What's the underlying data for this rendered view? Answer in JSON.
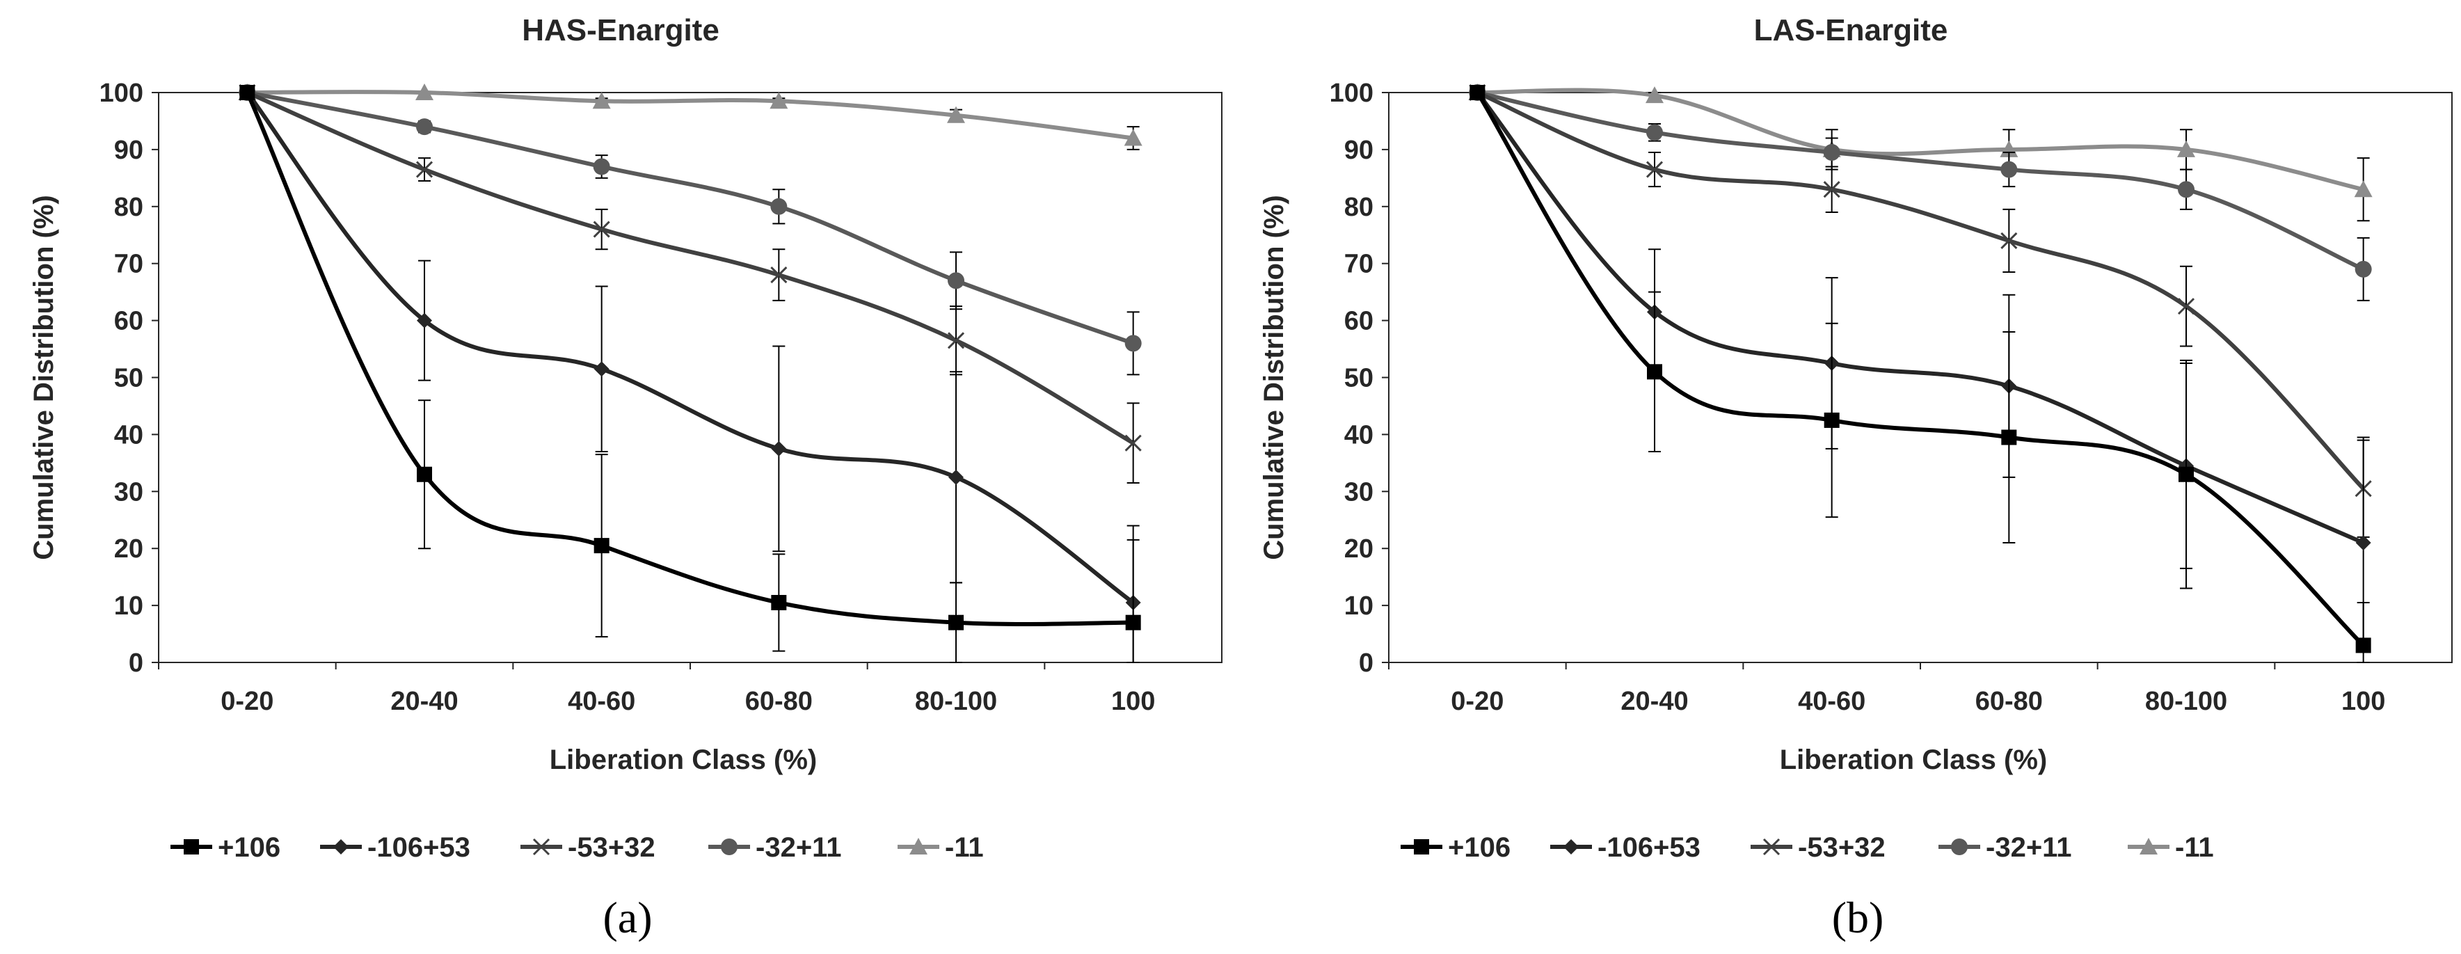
{
  "chart_data": [
    {
      "type": "line",
      "title": "HAS-Enargite",
      "xlabel": "Liberation Class (%)",
      "ylabel": "Cumulative Distribution (%)",
      "categories": [
        "0-20",
        "20-40",
        "40-60",
        "60-80",
        "80-100",
        "100"
      ],
      "ylim": [
        0,
        100
      ],
      "yticks": [
        "0",
        "10",
        "20",
        "30",
        "40",
        "50",
        "60",
        "70",
        "80",
        "90",
        "100"
      ],
      "panel_label": "(a)",
      "series": [
        {
          "name": "+106",
          "marker": "square",
          "color": "#000000",
          "values": [
            100,
            33,
            20.5,
            10.5,
            7,
            7
          ],
          "errors": [
            0,
            13,
            16,
            8.5,
            7,
            17
          ]
        },
        {
          "name": "-106+53",
          "marker": "diamond",
          "color": "#262626",
          "values": [
            100,
            60,
            51.5,
            37.5,
            32.5,
            10.5
          ],
          "errors": [
            0,
            10.5,
            14.5,
            18,
            18.5,
            11
          ]
        },
        {
          "name": "-53+32",
          "marker": "x",
          "color": "#404040",
          "values": [
            100,
            86.5,
            76,
            68,
            56.5,
            38.5
          ],
          "errors": [
            0,
            2,
            3.5,
            4.5,
            6,
            7
          ]
        },
        {
          "name": "-32+11",
          "marker": "circle",
          "color": "#595959",
          "values": [
            100,
            94,
            87,
            80,
            67,
            56
          ],
          "errors": [
            0,
            1,
            2,
            3,
            5,
            5.5
          ]
        },
        {
          "name": "-11",
          "marker": "triangle",
          "color": "#8c8c8c",
          "values": [
            100,
            100,
            98.5,
            98.5,
            96,
            92
          ],
          "errors": [
            0,
            0,
            0.5,
            0.5,
            1,
            2
          ]
        }
      ]
    },
    {
      "type": "line",
      "title": "LAS-Enargite",
      "xlabel": "Liberation Class (%)",
      "ylabel": "Cumulative Distribution (%)",
      "categories": [
        "0-20",
        "20-40",
        "40-60",
        "60-80",
        "80-100",
        "100"
      ],
      "ylim": [
        0,
        100
      ],
      "yticks": [
        "0",
        "10",
        "20",
        "30",
        "40",
        "50",
        "60",
        "70",
        "80",
        "90",
        "100"
      ],
      "panel_label": "(b)",
      "series": [
        {
          "name": "+106",
          "marker": "square",
          "color": "#000000",
          "values": [
            100,
            51,
            42.5,
            39.5,
            33,
            3
          ],
          "errors": [
            0,
            14,
            17,
            18.5,
            20,
            7.5
          ]
        },
        {
          "name": "-106+53",
          "marker": "diamond",
          "color": "#262626",
          "values": [
            100,
            61.5,
            52.5,
            48.5,
            34.5,
            21
          ],
          "errors": [
            0,
            11,
            15,
            16,
            18,
            18.5
          ]
        },
        {
          "name": "-53+32",
          "marker": "x",
          "color": "#404040",
          "values": [
            100,
            86.5,
            83,
            74,
            62.5,
            30.5
          ],
          "errors": [
            0,
            3,
            4,
            5.5,
            7,
            8.5
          ]
        },
        {
          "name": "-32+11",
          "marker": "circle",
          "color": "#595959",
          "values": [
            100,
            93,
            89.5,
            86.5,
            83,
            69
          ],
          "errors": [
            0,
            1.5,
            2.5,
            3,
            3.5,
            5.5
          ]
        },
        {
          "name": "-11",
          "marker": "triangle",
          "color": "#8c8c8c",
          "values": [
            100,
            99.5,
            90,
            90,
            90,
            83
          ],
          "errors": [
            0,
            0.5,
            3.5,
            3.5,
            3.5,
            5.5
          ]
        }
      ]
    }
  ]
}
